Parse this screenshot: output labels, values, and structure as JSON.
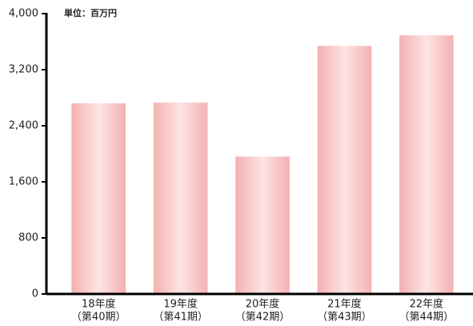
{
  "chart_data": {
    "type": "bar",
    "unit_label": "単位：百万円",
    "categories": [
      "18年度",
      "19年度",
      "20年度",
      "21年度",
      "22年度"
    ],
    "periods": [
      "（第40期）",
      "（第41期）",
      "（第42期）",
      "（第43期）",
      "（第44期）"
    ],
    "values": [
      2720,
      2730,
      1960,
      3540,
      3690
    ],
    "color": "#f5b5b5",
    "ylim": [
      0,
      4000
    ],
    "yticks": [
      0,
      800,
      {
        "value": 1600,
        "label": "1,600"
      },
      {
        "value": 2400,
        "label": "2,400"
      },
      {
        "value": 3200,
        "label": "3,200"
      },
      {
        "value": 4000,
        "label": "4,000"
      }
    ],
    "grid": false
  }
}
